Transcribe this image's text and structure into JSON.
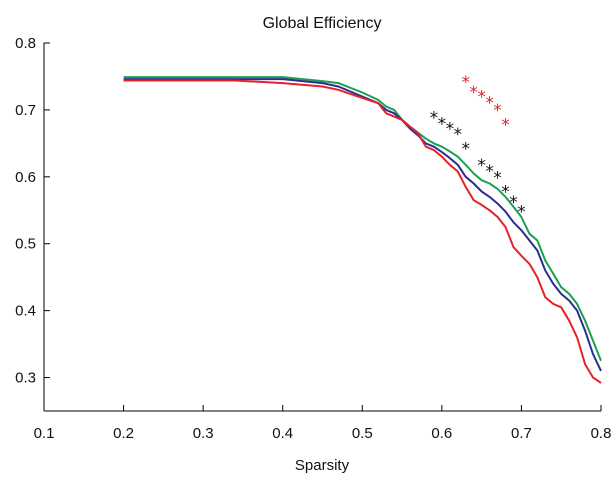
{
  "chart_data": {
    "type": "line",
    "title": "Global Efficiency",
    "xlabel": "Sparsity",
    "ylabel": "",
    "xlim": [
      0.1,
      0.8
    ],
    "ylim": [
      0.25,
      0.8
    ],
    "xticks": [
      "0.1",
      "0.2",
      "0.3",
      "0.4",
      "0.5",
      "0.6",
      "0.7",
      "0.8"
    ],
    "xtick_values": [
      0.1,
      0.2,
      0.3,
      0.4,
      0.5,
      0.6,
      0.7,
      0.8
    ],
    "yticks": [
      "0.3",
      "0.4",
      "0.5",
      "0.6",
      "0.7",
      "0.8"
    ],
    "ytick_values": [
      0.3,
      0.4,
      0.5,
      0.6,
      0.7,
      0.8
    ],
    "grid": false,
    "series": [
      {
        "color": "#1aa050",
        "x": [
          0.2,
          0.3,
          0.4,
          0.45,
          0.47,
          0.5,
          0.52,
          0.53,
          0.54,
          0.55,
          0.56,
          0.57,
          0.58,
          0.59,
          0.6,
          0.61,
          0.62,
          0.63,
          0.64,
          0.65,
          0.66,
          0.67,
          0.68,
          0.69,
          0.7,
          0.71,
          0.72,
          0.73,
          0.74,
          0.75,
          0.76,
          0.77,
          0.78,
          0.79,
          0.8
        ],
        "y": [
          0.749,
          0.749,
          0.749,
          0.743,
          0.74,
          0.726,
          0.715,
          0.705,
          0.7,
          0.685,
          0.675,
          0.666,
          0.657,
          0.65,
          0.645,
          0.638,
          0.63,
          0.618,
          0.605,
          0.595,
          0.59,
          0.582,
          0.57,
          0.555,
          0.54,
          0.515,
          0.505,
          0.475,
          0.455,
          0.435,
          0.425,
          0.41,
          0.385,
          0.355,
          0.325
        ]
      },
      {
        "color": "#2a2f8f",
        "x": [
          0.2,
          0.3,
          0.4,
          0.45,
          0.47,
          0.5,
          0.52,
          0.53,
          0.54,
          0.55,
          0.56,
          0.57,
          0.58,
          0.59,
          0.6,
          0.61,
          0.62,
          0.63,
          0.64,
          0.65,
          0.66,
          0.67,
          0.68,
          0.69,
          0.7,
          0.71,
          0.72,
          0.73,
          0.74,
          0.75,
          0.76,
          0.77,
          0.78,
          0.79,
          0.8
        ],
        "y": [
          0.746,
          0.746,
          0.746,
          0.74,
          0.735,
          0.72,
          0.71,
          0.7,
          0.695,
          0.685,
          0.672,
          0.662,
          0.65,
          0.645,
          0.637,
          0.628,
          0.618,
          0.6,
          0.59,
          0.578,
          0.57,
          0.56,
          0.548,
          0.532,
          0.52,
          0.505,
          0.49,
          0.46,
          0.44,
          0.425,
          0.415,
          0.4,
          0.37,
          0.335,
          0.31
        ]
      },
      {
        "color": "#e8202a",
        "x": [
          0.2,
          0.3,
          0.34,
          0.4,
          0.45,
          0.47,
          0.5,
          0.52,
          0.53,
          0.54,
          0.55,
          0.56,
          0.57,
          0.58,
          0.59,
          0.6,
          0.61,
          0.62,
          0.63,
          0.64,
          0.65,
          0.66,
          0.67,
          0.68,
          0.69,
          0.7,
          0.71,
          0.72,
          0.73,
          0.74,
          0.75,
          0.76,
          0.77,
          0.78,
          0.79,
          0.8
        ],
        "y": [
          0.744,
          0.744,
          0.744,
          0.74,
          0.735,
          0.73,
          0.718,
          0.71,
          0.695,
          0.69,
          0.685,
          0.675,
          0.665,
          0.645,
          0.64,
          0.63,
          0.618,
          0.608,
          0.585,
          0.565,
          0.558,
          0.55,
          0.54,
          0.525,
          0.495,
          0.482,
          0.47,
          0.45,
          0.42,
          0.41,
          0.405,
          0.385,
          0.36,
          0.32,
          0.3,
          0.292
        ]
      }
    ],
    "markers": [
      {
        "color": "#e8202a",
        "symbol": "*",
        "x": [
          0.63,
          0.64,
          0.65,
          0.66,
          0.67,
          0.68
        ],
        "y": [
          0.745,
          0.73,
          0.723,
          0.714,
          0.703,
          0.681
        ]
      },
      {
        "color": "#111111",
        "symbol": "*",
        "x": [
          0.59,
          0.6,
          0.61,
          0.62,
          0.63,
          0.65,
          0.66,
          0.67,
          0.68,
          0.69,
          0.7
        ],
        "y": [
          0.692,
          0.683,
          0.675,
          0.667,
          0.645,
          0.621,
          0.612,
          0.602,
          0.581,
          0.565,
          0.551
        ]
      }
    ]
  }
}
